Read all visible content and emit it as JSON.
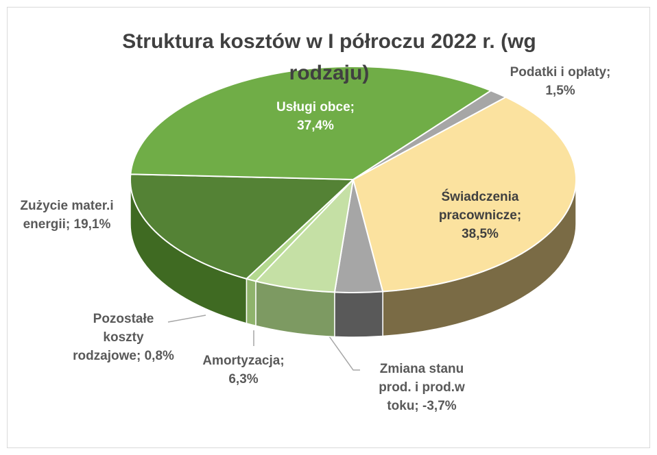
{
  "chart_data": {
    "type": "pie3d",
    "title": "Struktura kosztów w I półroczu 2022 r. (wg rodzaju)",
    "categories": [
      "Świadczenia pracownicze",
      "Zmiana stanu prod. i prod.w toku",
      "Amortyzacja",
      "Pozostałe koszty rodzajowe",
      "Zużycie mater.i energii",
      "Usługi obce",
      "Podatki i opłaty"
    ],
    "values": [
      38.5,
      -3.7,
      6.3,
      0.8,
      19.1,
      37.4,
      1.5
    ],
    "value_labels": [
      "38,5%",
      "-3,7%",
      "6,3%",
      "0,8%",
      "19,1%",
      "37,4%",
      "1,5%"
    ],
    "label_separator": "; ",
    "colors": [
      "#fbe29f",
      "#a6a6a6",
      "#c5e0a5",
      "#b4d98f",
      "#548235",
      "#70ad47",
      "#a6a6a6"
    ],
    "side_colors": [
      "#7a6b45",
      "#595959",
      "#7d9a62",
      "#8fb36c",
      "#3f6a22",
      "#4f8a2c",
      "#7f7f7f"
    ]
  }
}
